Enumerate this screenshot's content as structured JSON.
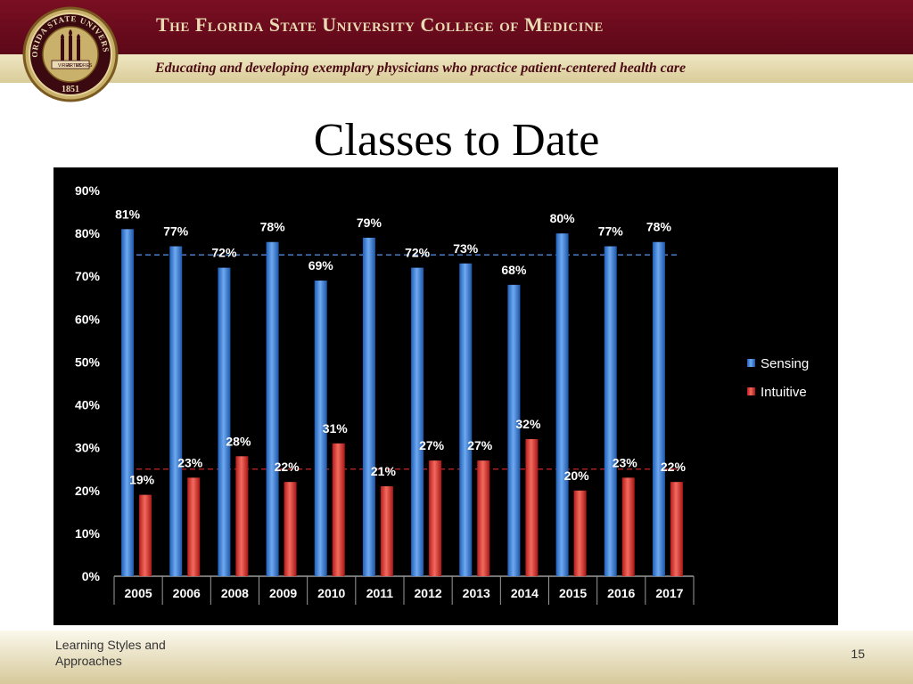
{
  "header": {
    "title": "The Florida State University College of Medicine",
    "tagline": "Educating and developing exemplary physicians who practice patient-centered health care"
  },
  "seal": {
    "ring_text": "FLORIDA STATE UNIVERSITY",
    "year": "1851",
    "ribbon": [
      "VIRES",
      "ARTES",
      "MORES"
    ]
  },
  "slide": {
    "title": "Classes to Date"
  },
  "footer": {
    "left_text": "Learning Styles and Approaches",
    "page_number": "15"
  },
  "colors": {
    "maroon": "#5c0818",
    "gold": "#c9b06b",
    "sensing": "#3a7fd6",
    "intuitive": "#e0312c"
  },
  "chart_data": {
    "type": "bar",
    "categories": [
      "2005",
      "2006",
      "2008",
      "2009",
      "2010",
      "2011",
      "2012",
      "2013",
      "2014",
      "2015",
      "2016",
      "2017"
    ],
    "series": [
      {
        "name": "Sensing",
        "values": [
          81,
          77,
          72,
          78,
          69,
          79,
          72,
          73,
          68,
          80,
          77,
          78
        ],
        "labels": [
          "81%",
          "77%",
          "72%",
          "78%",
          "69%",
          "79%",
          "72%",
          "73%",
          "68%",
          "80%",
          "77%",
          "78%"
        ]
      },
      {
        "name": "Intuitive",
        "values": [
          19,
          23,
          28,
          22,
          31,
          21,
          27,
          27,
          32,
          20,
          23,
          22
        ],
        "labels": [
          "19%",
          "23%",
          "28%",
          "22%",
          "31%",
          "21%",
          "27%",
          "27%",
          "32%",
          "20%",
          "23%",
          "22%"
        ]
      }
    ],
    "reference_lines": [
      {
        "series": "Sensing",
        "value": 75,
        "style": "dashed"
      },
      {
        "series": "Intuitive",
        "value": 25,
        "style": "dashed"
      }
    ],
    "ylim": [
      0,
      90
    ],
    "yticks": [
      "0%",
      "10%",
      "20%",
      "30%",
      "40%",
      "50%",
      "60%",
      "70%",
      "80%",
      "90%"
    ],
    "title": "",
    "xlabel": "",
    "ylabel": "",
    "grid": false,
    "legend": "right",
    "background": "#000000"
  }
}
